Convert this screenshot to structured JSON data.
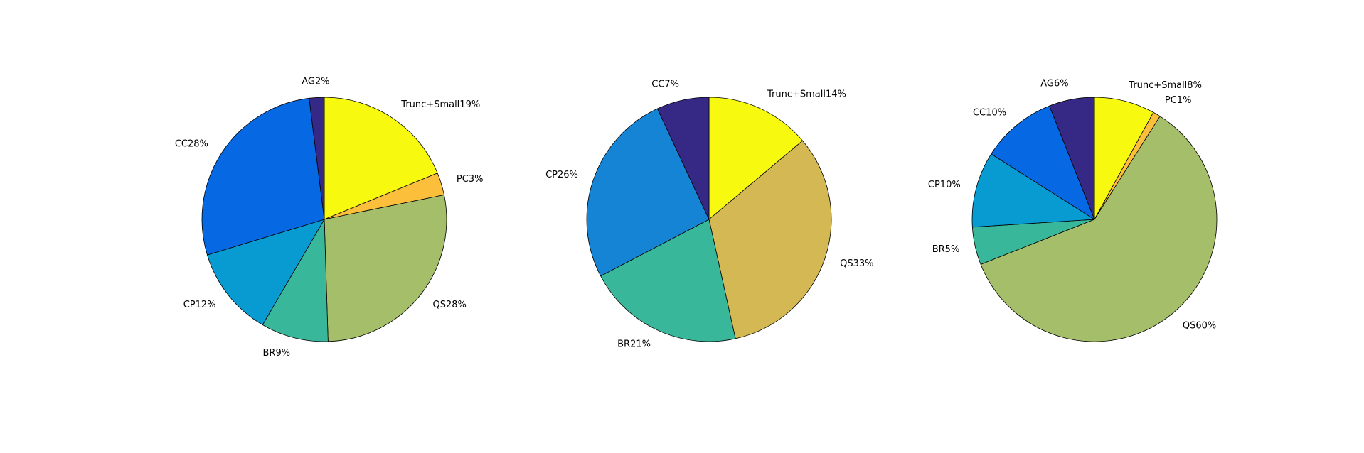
{
  "chart_data": [
    {
      "type": "pie",
      "start": "12 o'clock",
      "direction": "clockwise",
      "slices": [
        {
          "label": "Trunc+Small19%",
          "value": 19,
          "color": "#f7f90f"
        },
        {
          "label": "PC3%",
          "value": 3,
          "color": "#fbbf3b"
        },
        {
          "label": "QS28%",
          "value": 28,
          "color": "#a4be6a"
        },
        {
          "label": "BR9%",
          "value": 9,
          "color": "#38b79a"
        },
        {
          "label": "CP12%",
          "value": 12,
          "color": "#089bd1"
        },
        {
          "label": "CC28%",
          "value": 28,
          "color": "#0669e3"
        },
        {
          "label": "AG2%",
          "value": 2,
          "color": "#352985"
        }
      ]
    },
    {
      "type": "pie",
      "start": "12 o'clock",
      "direction": "clockwise",
      "slices": [
        {
          "label": "Trunc+Small14%",
          "value": 14,
          "color": "#f7f90f"
        },
        {
          "label": "QS33%",
          "value": 33,
          "color": "#d4b853"
        },
        {
          "label": "BR21%",
          "value": 21,
          "color": "#38b79a"
        },
        {
          "label": "CP26%",
          "value": 26,
          "color": "#1584d4"
        },
        {
          "label": "CC7%",
          "value": 7,
          "color": "#352985"
        }
      ]
    },
    {
      "type": "pie",
      "start": "12 o'clock",
      "direction": "clockwise",
      "slices": [
        {
          "label": "Trunc+Small8%",
          "value": 8,
          "color": "#f7f90f"
        },
        {
          "label": "PC1%",
          "value": 1,
          "color": "#fbbf3b"
        },
        {
          "label": "QS60%",
          "value": 60,
          "color": "#a4be6a"
        },
        {
          "label": "BR5%",
          "value": 5,
          "color": "#38b79a"
        },
        {
          "label": "CP10%",
          "value": 10,
          "color": "#089bd1"
        },
        {
          "label": "CC10%",
          "value": 10,
          "color": "#0669e3"
        },
        {
          "label": "AG6%",
          "value": 6,
          "color": "#352985"
        }
      ]
    }
  ]
}
